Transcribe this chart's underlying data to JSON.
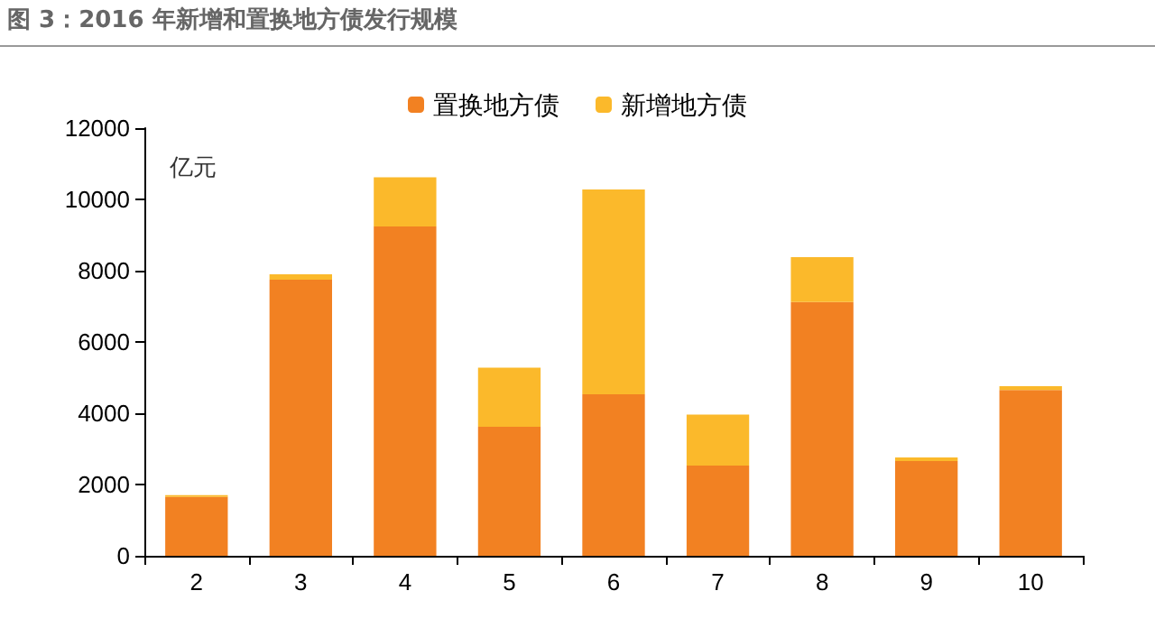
{
  "chart_data": {
    "type": "bar",
    "title": "图 3：2016 年新增和置换地方债发行规模",
    "ylabel": "亿元",
    "categories": [
      "2",
      "3",
      "4",
      "5",
      "6",
      "7",
      "8",
      "9",
      "10"
    ],
    "stacked": true,
    "series": [
      {
        "name": "置换地方债",
        "color": "#f28122",
        "values": [
          1650,
          7750,
          9240,
          3620,
          4530,
          2530,
          7120,
          2660,
          4650
        ]
      },
      {
        "name": "新增地方债",
        "color": "#fbb92b",
        "values": [
          50,
          150,
          1380,
          1660,
          5750,
          1430,
          1260,
          100,
          110
        ]
      }
    ],
    "ylim": [
      0,
      12000
    ],
    "yticks": [
      0,
      2000,
      4000,
      6000,
      8000,
      10000,
      12000
    ],
    "grid": false,
    "legend": "top"
  }
}
